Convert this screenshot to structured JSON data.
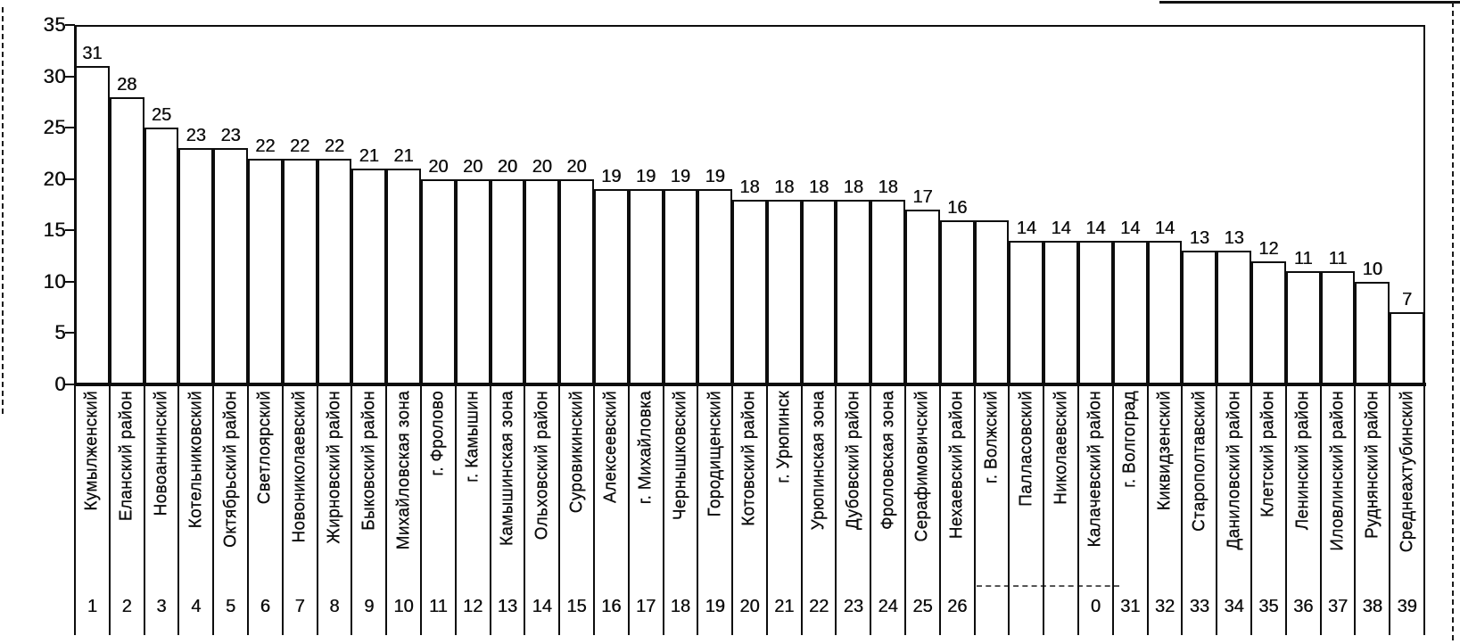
{
  "chart_data": {
    "type": "bar",
    "title": "",
    "xlabel": "",
    "ylabel": "",
    "ylim": [
      0,
      35
    ],
    "yticks": [
      "0",
      "5",
      "10",
      "15",
      "20",
      "25",
      "30",
      "35"
    ],
    "grid": "single top gridline at y=35; no other gridlines; open plot frame with right border",
    "legend": "none",
    "bar_fill": "#ffffff",
    "bar_border": "#0d0d0d",
    "categories": [
      "Кумылженский",
      "Еланский район",
      "Новоаннинский",
      "Котельниковский",
      "Октябрьский район",
      "Светлоярский",
      "Новониколаевский",
      "Жирновский район",
      "Быковский район",
      "Михайловская зона",
      "г. Фролово",
      "г. Камышин",
      "Камышинская зона",
      "Ольховский район",
      "Суровикинский",
      "Алексеевский",
      "г. Михайловка",
      "Чернышковский",
      "Городищенский",
      "Котовский район",
      "г. Урюпинск",
      "Урюпинская зона",
      "Дубовский район",
      "Фроловская зона",
      "Серафимовичский",
      "Нехаевский район",
      "г. Волжский",
      "Палласовский",
      "Николаевский",
      "Калачевский район",
      "г. Волгоград",
      "Киквидзенский",
      "Старополтавский",
      "Даниловский район",
      "Клетский район",
      "Ленинский район",
      "Иловлинский район",
      "Руднянский район",
      "Среднеахтубинский"
    ],
    "values": [
      31,
      28,
      25,
      23,
      23,
      22,
      22,
      22,
      21,
      21,
      20,
      20,
      20,
      20,
      20,
      19,
      19,
      19,
      19,
      18,
      18,
      18,
      18,
      18,
      17,
      16,
      16,
      14,
      14,
      14,
      14,
      14,
      13,
      13,
      12,
      11,
      11,
      10,
      7
    ],
    "value_labels": [
      "31",
      "28",
      "25",
      "23",
      "23",
      "22",
      "22",
      "22",
      "21",
      "21",
      "20",
      "20",
      "20",
      "20",
      "20",
      "19",
      "19",
      "19",
      "19",
      "18",
      "18",
      "18",
      "18",
      "18",
      "17",
      "16",
      "",
      "14",
      "14",
      "14",
      "14",
      "14",
      "13",
      "13",
      "12",
      "11",
      "11",
      "10",
      "7"
    ],
    "index_labels": [
      "1",
      "2",
      "3",
      "4",
      "5",
      "6",
      "7",
      "8",
      "9",
      "10",
      "11",
      "12",
      "13",
      "14",
      "15",
      "16",
      "17",
      "18",
      "19",
      "20",
      "21",
      "22",
      "23",
      "24",
      "25",
      "26",
      "",
      "",
      "",
      "0",
      "31",
      "32",
      "33",
      "34",
      "35",
      "36",
      "37",
      "38",
      "39"
    ]
  }
}
